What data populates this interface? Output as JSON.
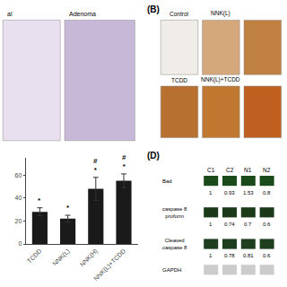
{
  "chart_data": [
    {
      "type": "image",
      "labels": [
        "al",
        "Adenoma"
      ],
      "colors": [
        "#e8e0ee",
        "#c8b8d8"
      ]
    },
    {
      "type": "image",
      "title": "(B)",
      "labels": [
        "Control",
        "NNK(L)",
        null,
        "TCDD",
        "NNK(L)+TCDD",
        null
      ],
      "colors": [
        "#f0ede8",
        "#d4a87a",
        "#c08040",
        "#b87030",
        "#c07830",
        "#c06020"
      ]
    },
    {
      "type": "bar",
      "categories": [
        "TCDD",
        "NNK(L)",
        "NNK(H)",
        "NNK(L)+TCDD"
      ],
      "values": [
        28,
        22,
        48,
        55
      ],
      "errors": [
        3.5,
        3.0,
        10.0,
        6.0
      ],
      "color": "#1a1a1a",
      "ylim": [
        0,
        75
      ],
      "yticks": [
        0,
        20,
        40,
        60
      ],
      "grid": false,
      "annotations": [
        {
          "category": "TCDD",
          "symbols": [
            "*"
          ]
        },
        {
          "category": "NNK(L)",
          "symbols": [
            "*"
          ]
        },
        {
          "category": "NNK(H)",
          "symbols": [
            "#",
            "*"
          ]
        },
        {
          "category": "NNK(L)+TCDD",
          "symbols": [
            "#",
            "*"
          ]
        }
      ]
    },
    {
      "type": "table",
      "title": "(D)",
      "columns": [
        "C1",
        "C2",
        "N1",
        "N2"
      ],
      "rows": [
        {
          "label": "Bad",
          "values": [
            1,
            0.93,
            1.53,
            0.8
          ]
        },
        {
          "label": "caspase 8\nproform",
          "values": [
            1,
            0.74,
            0.7,
            0.6
          ]
        },
        {
          "label": "Cleaved\ncaspase 8",
          "values": [
            1,
            0.78,
            0.81,
            0.6
          ]
        },
        {
          "label": "GAPDH",
          "values": null
        }
      ],
      "colors": [
        "#1a4a1a",
        "#1a3a1a",
        "#1e3e1e",
        "#cccccc"
      ]
    }
  ]
}
